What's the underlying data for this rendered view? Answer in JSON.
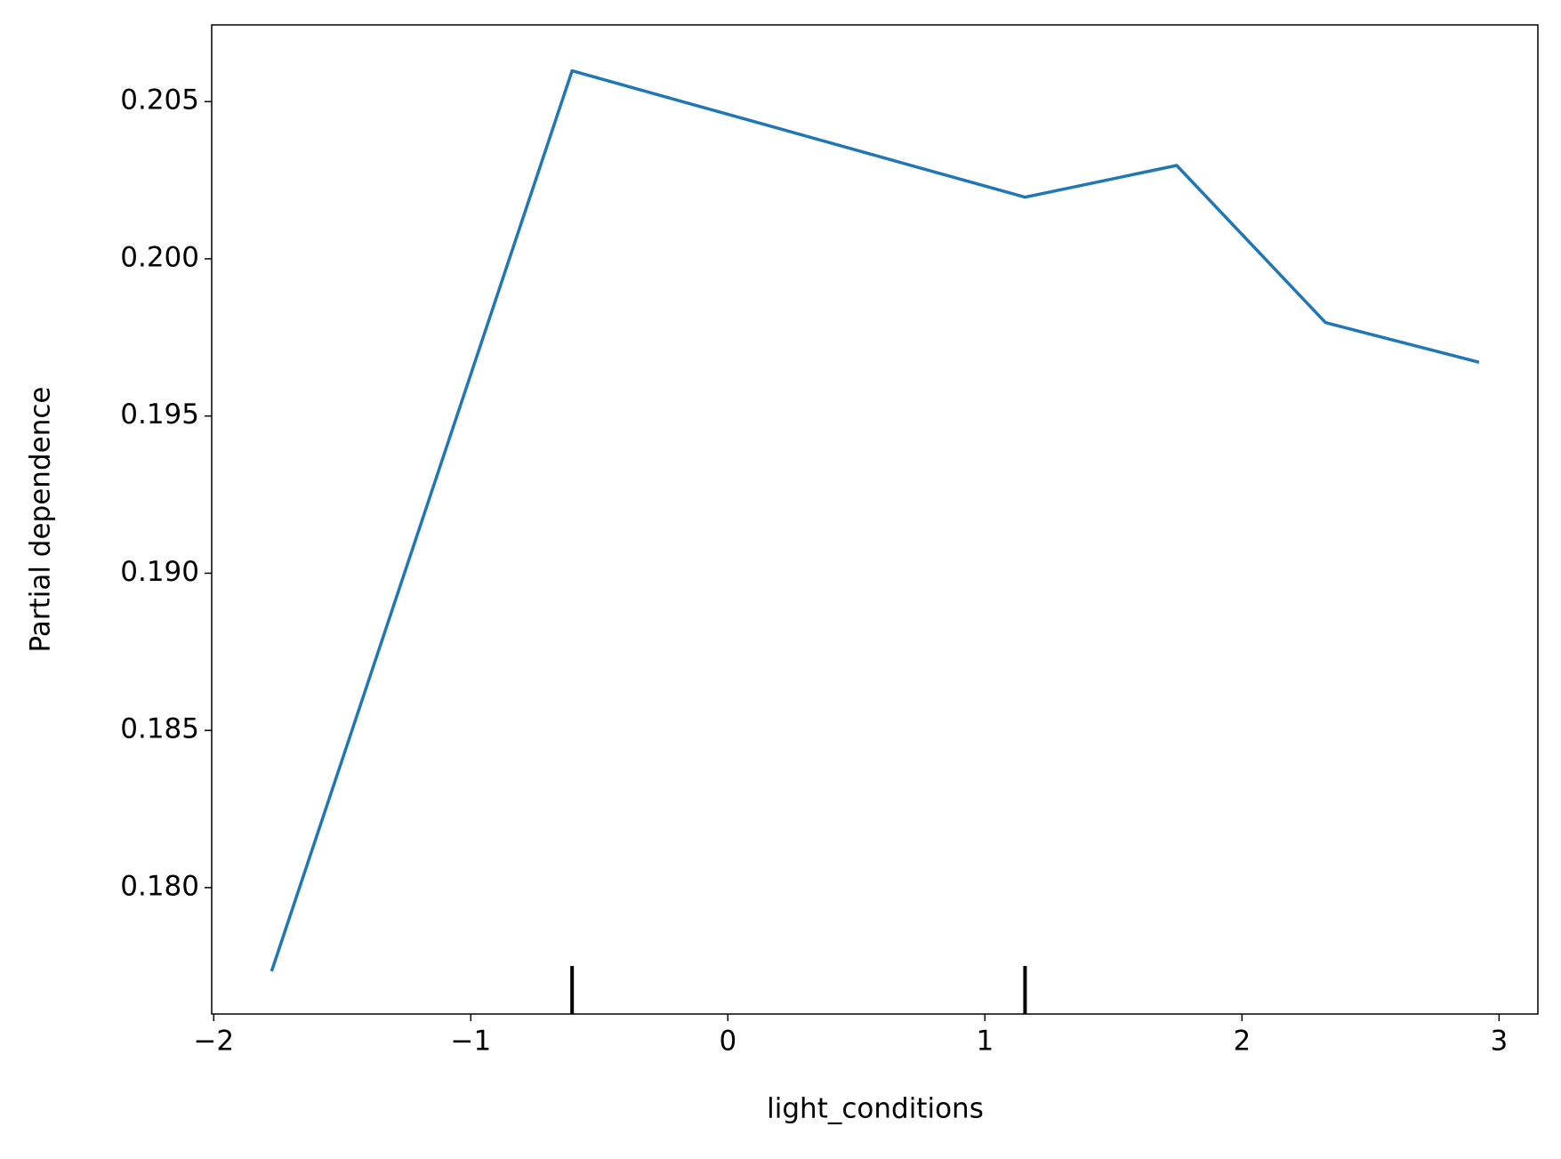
{
  "chart_data": {
    "type": "line",
    "xlabel": "light_conditions",
    "ylabel": "Partial dependence",
    "x": [
      -1.775,
      -0.606,
      1.156,
      1.746,
      2.325,
      2.922
    ],
    "values": [
      0.17734,
      0.20598,
      0.20196,
      0.20297,
      0.19797,
      0.19671
    ],
    "color": "#1f77b4",
    "deciles": [
      -0.606,
      1.156
    ],
    "xlim": [
      -2.008,
      3.151
    ],
    "ylim": [
      0.17598,
      0.20744
    ],
    "xticks": [
      {
        "value": -2,
        "label": "−2"
      },
      {
        "value": -1,
        "label": "−1"
      },
      0,
      1,
      2,
      3
    ],
    "yticks": [
      {
        "value": 0.18,
        "label": "0.180"
      },
      0.185,
      {
        "value": 0.19,
        "label": "0.190"
      },
      0.195,
      {
        "value": 0.2,
        "label": "0.200"
      },
      0.205
    ]
  }
}
